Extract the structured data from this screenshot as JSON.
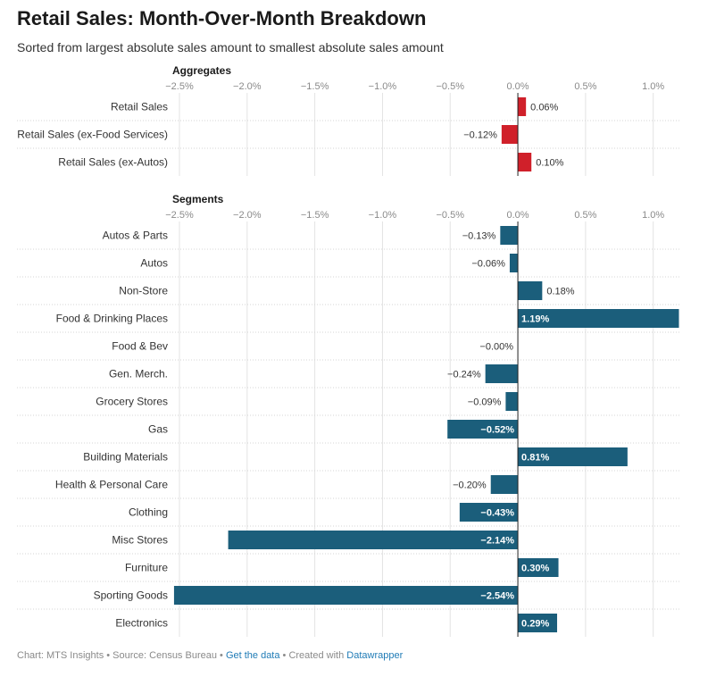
{
  "title": "Retail Sales: Month-Over-Month Breakdown",
  "subtitle": "Sorted from largest absolute sales amount to smallest absolute sales amount",
  "footer": {
    "chart_credit": "Chart: MTS Insights",
    "source": "Source: Census Bureau",
    "get_data": "Get the data",
    "created_with": "Created with",
    "tool": "Datawrapper",
    "separator": " • "
  },
  "colors": {
    "aggregate_bar": "#d0202a",
    "segment_bar": "#1b5e7b",
    "grid": "#e3e3e3",
    "zero_line": "#222222",
    "row_divider": "#d6d6d6",
    "axis_tick": "#8a8a8a"
  },
  "chart_data": [
    {
      "type": "bar",
      "orientation": "horizontal",
      "panel": "Aggregates",
      "title": "Aggregates",
      "xlim": [
        -2.5,
        1.2
      ],
      "ticks": [
        -2.5,
        -2.0,
        -1.5,
        -1.0,
        -0.5,
        0.0,
        0.5,
        1.0
      ],
      "tick_labels": [
        "−2.5%",
        "−2.0%",
        "−1.5%",
        "−1.0%",
        "−0.5%",
        "0.0%",
        "0.5%",
        "1.0%"
      ],
      "categories": [
        "Retail Sales",
        "Retail Sales (ex-Food Services)",
        "Retail Sales (ex-Autos)"
      ],
      "values": [
        0.06,
        -0.12,
        0.1
      ],
      "labels": [
        "0.06%",
        "−0.12%",
        "0.10%"
      ],
      "unit": "%"
    },
    {
      "type": "bar",
      "orientation": "horizontal",
      "panel": "Segments",
      "title": "Segments",
      "xlim": [
        -2.5,
        1.2
      ],
      "ticks": [
        -2.5,
        -2.0,
        -1.5,
        -1.0,
        -0.5,
        0.0,
        0.5,
        1.0
      ],
      "tick_labels": [
        "−2.5%",
        "−2.0%",
        "−1.5%",
        "−1.0%",
        "−0.5%",
        "0.0%",
        "0.5%",
        "1.0%"
      ],
      "categories": [
        "Autos & Parts",
        "Autos",
        "Non-Store",
        "Food & Drinking Places",
        "Food & Bev",
        "Gen. Merch.",
        "Grocery Stores",
        "Gas",
        "Building Materials",
        "Health & Personal Care",
        "Clothing",
        "Misc Stores",
        "Furniture",
        "Sporting Goods",
        "Electronics"
      ],
      "values": [
        -0.13,
        -0.06,
        0.18,
        1.19,
        -0.0,
        -0.24,
        -0.09,
        -0.52,
        0.81,
        -0.2,
        -0.43,
        -2.14,
        0.3,
        -2.54,
        0.29
      ],
      "labels": [
        "−0.13%",
        "−0.06%",
        "0.18%",
        "1.19%",
        "−0.00%",
        "−0.24%",
        "−0.09%",
        "−0.52%",
        "0.81%",
        "−0.20%",
        "−0.43%",
        "−2.14%",
        "0.30%",
        "−2.54%",
        "0.29%"
      ],
      "unit": "%"
    }
  ]
}
